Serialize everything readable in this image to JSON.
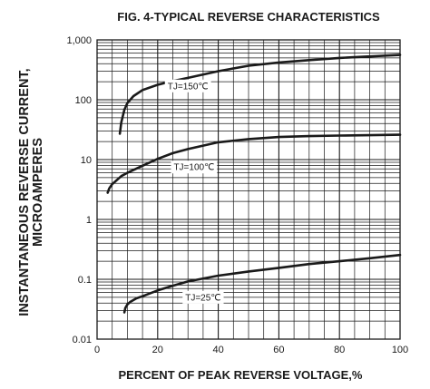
{
  "chart_data": {
    "type": "line",
    "title": "FIG. 4-TYPICAL REVERSE CHARACTERISTICS",
    "xlabel": "PERCENT OF PEAK REVERSE VOLTAGE,%",
    "ylabel_line1": "INSTANTANEOUS REVERSE CURRENT,",
    "ylabel_line2": "MICROAMPERES",
    "xlim": [
      0,
      100
    ],
    "ylim": [
      0.01,
      1000
    ],
    "yscale": "log",
    "grid": true,
    "x_ticks": [
      0,
      20,
      40,
      60,
      80,
      100
    ],
    "x_tick_labels": [
      "0",
      "20",
      "40",
      "60",
      "80",
      "100"
    ],
    "y_ticks": [
      0.01,
      0.1,
      1,
      10,
      100,
      1000
    ],
    "y_tick_labels": [
      "0.01",
      "0.1",
      "1",
      "10",
      "100",
      "1,000"
    ],
    "series": [
      {
        "name": "TJ=150℃",
        "label_at": [
          30,
          170
        ],
        "x": [
          7.5,
          8,
          9,
          10,
          12,
          15,
          20,
          25,
          30,
          40,
          50,
          60,
          70,
          80,
          90,
          100
        ],
        "y": [
          27,
          42,
          68,
          88,
          115,
          145,
          178,
          205,
          232,
          300,
          370,
          420,
          460,
          500,
          530,
          560
        ]
      },
      {
        "name": "TJ=100℃",
        "label_at": [
          32,
          7.5
        ],
        "x": [
          3.5,
          4,
          5,
          6,
          8,
          10,
          15,
          20,
          25,
          30,
          40,
          50,
          60,
          70,
          80,
          90,
          100
        ],
        "y": [
          2.8,
          3.3,
          3.9,
          4.3,
          5.3,
          6.0,
          7.9,
          10.3,
          12.8,
          15,
          19.5,
          22,
          23.8,
          24.7,
          25.2,
          25.6,
          26
        ]
      },
      {
        "name": "TJ=25℃",
        "label_at": [
          35,
          0.05
        ],
        "x": [
          9,
          9.3,
          10,
          11,
          13,
          15,
          20,
          25,
          30,
          40,
          50,
          60,
          70,
          80,
          90,
          100
        ],
        "y": [
          0.028,
          0.033,
          0.038,
          0.042,
          0.048,
          0.052,
          0.065,
          0.078,
          0.092,
          0.115,
          0.135,
          0.155,
          0.18,
          0.2,
          0.225,
          0.255
        ]
      }
    ],
    "colors": {
      "line": "#1a1a1a",
      "grid": "#1a1a1a",
      "background": "#ffffff"
    }
  }
}
